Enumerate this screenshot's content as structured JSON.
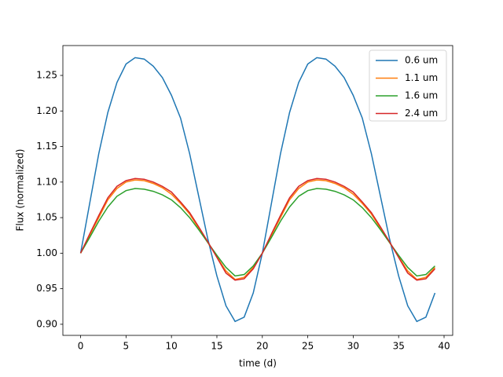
{
  "chart_data": {
    "type": "line",
    "xlabel": "time (d)",
    "ylabel": "Flux (normalized)",
    "x": [
      0,
      1,
      2,
      3,
      4,
      5,
      6,
      7,
      8,
      9,
      10,
      11,
      12,
      13,
      14,
      15,
      16,
      17,
      18,
      19,
      20,
      21,
      22,
      23,
      24,
      25,
      26,
      27,
      28,
      29,
      30,
      31,
      32,
      33,
      34,
      35,
      36,
      37,
      38,
      39
    ],
    "series": [
      {
        "name": "0.6 um",
        "color": "#1f77b4",
        "values": [
          1.0,
          1.07,
          1.14,
          1.198,
          1.24,
          1.266,
          1.275,
          1.273,
          1.263,
          1.247,
          1.222,
          1.19,
          1.14,
          1.08,
          1.02,
          0.968,
          0.926,
          0.904,
          0.91,
          0.944,
          1.0,
          1.07,
          1.14,
          1.198,
          1.24,
          1.266,
          1.275,
          1.273,
          1.263,
          1.247,
          1.222,
          1.19,
          1.14,
          1.08,
          1.02,
          0.968,
          0.926,
          0.904,
          0.91,
          0.944
        ]
      },
      {
        "name": "1.1 um",
        "color": "#ff7f0e",
        "values": [
          1.0,
          1.025,
          1.05,
          1.075,
          1.091,
          1.1,
          1.103,
          1.102,
          1.098,
          1.092,
          1.083,
          1.07,
          1.055,
          1.035,
          1.015,
          0.995,
          0.975,
          0.963,
          0.966,
          0.98,
          1.0,
          1.025,
          1.05,
          1.075,
          1.091,
          1.1,
          1.103,
          1.102,
          1.098,
          1.092,
          1.083,
          1.07,
          1.055,
          1.035,
          1.015,
          0.995,
          0.975,
          0.963,
          0.966,
          0.98
        ]
      },
      {
        "name": "1.6 um",
        "color": "#2ca02c",
        "values": [
          1.0,
          1.022,
          1.045,
          1.065,
          1.08,
          1.088,
          1.091,
          1.09,
          1.087,
          1.082,
          1.075,
          1.064,
          1.05,
          1.033,
          1.015,
          0.997,
          0.98,
          0.968,
          0.97,
          0.982,
          1.0,
          1.022,
          1.045,
          1.065,
          1.08,
          1.088,
          1.091,
          1.09,
          1.087,
          1.082,
          1.075,
          1.064,
          1.05,
          1.033,
          1.015,
          0.997,
          0.98,
          0.968,
          0.97,
          0.982
        ]
      },
      {
        "name": "2.4 um",
        "color": "#d62728",
        "values": [
          1.0,
          1.027,
          1.053,
          1.078,
          1.094,
          1.102,
          1.105,
          1.104,
          1.1,
          1.094,
          1.086,
          1.072,
          1.057,
          1.037,
          1.016,
          0.994,
          0.972,
          0.962,
          0.964,
          0.978,
          1.0,
          1.027,
          1.053,
          1.078,
          1.094,
          1.102,
          1.105,
          1.104,
          1.1,
          1.094,
          1.086,
          1.072,
          1.057,
          1.037,
          1.016,
          0.994,
          0.972,
          0.962,
          0.964,
          0.978
        ]
      }
    ],
    "xlim": [
      -1.95,
      40.95
    ],
    "xticks": [
      0,
      5,
      10,
      15,
      20,
      25,
      30,
      35,
      40
    ],
    "ylim": [
      0.8844,
      1.292
    ],
    "yticks": [
      {
        "value": 0.9,
        "label": "0.90"
      },
      0.95,
      {
        "value": 1.0,
        "label": "1.00"
      },
      1.05,
      {
        "value": 1.1,
        "label": "1.10"
      },
      1.15,
      {
        "value": 1.2,
        "label": "1.20"
      },
      1.25
    ],
    "legend": "upper right"
  }
}
